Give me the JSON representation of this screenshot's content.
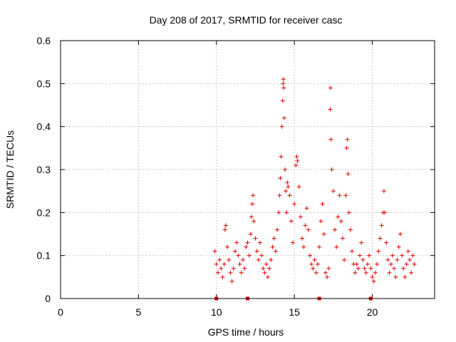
{
  "chart_data": {
    "type": "scatter",
    "title": "Day 208 of 2017, SRMTID for receiver casc",
    "xlabel": "GPS time / hours",
    "ylabel": "SRMTID / TECUs",
    "xlim": [
      0,
      24
    ],
    "ylim": [
      0,
      0.6
    ],
    "x_ticks": [
      0,
      5,
      10,
      15,
      20
    ],
    "y_ticks": [
      0,
      0.1,
      0.2,
      0.3,
      0.4,
      0.5,
      0.6
    ],
    "x_tick_labels": [
      "0",
      "5",
      "10",
      "15",
      "20"
    ],
    "y_tick_labels": [
      "0",
      "0.1",
      "0.2",
      "0.3",
      "0.4",
      "0.5",
      "0.6"
    ],
    "grid": true,
    "marker": "+",
    "color": "#e00000",
    "gap_markers_at_zero": [
      10.0,
      12.0,
      16.6,
      19.9
    ],
    "series": [
      {
        "name": "SRMTID",
        "points": [
          [
            9.9,
            0.11
          ],
          [
            10.0,
            0.08
          ],
          [
            10.1,
            0.06
          ],
          [
            10.2,
            0.09
          ],
          [
            10.3,
            0.07
          ],
          [
            10.4,
            0.05
          ],
          [
            10.5,
            0.08
          ],
          [
            10.55,
            0.16
          ],
          [
            10.6,
            0.17
          ],
          [
            10.7,
            0.12
          ],
          [
            10.8,
            0.09
          ],
          [
            10.9,
            0.06
          ],
          [
            11.0,
            0.04
          ],
          [
            11.1,
            0.07
          ],
          [
            11.2,
            0.11
          ],
          [
            11.3,
            0.13
          ],
          [
            11.4,
            0.1
          ],
          [
            11.5,
            0.08
          ],
          [
            11.6,
            0.06
          ],
          [
            11.7,
            0.09
          ],
          [
            11.8,
            0.07
          ],
          [
            11.9,
            0.12
          ],
          [
            12.0,
            0.13
          ],
          [
            12.1,
            0.1
          ],
          [
            12.2,
            0.15
          ],
          [
            12.25,
            0.19
          ],
          [
            12.3,
            0.22
          ],
          [
            12.35,
            0.24
          ],
          [
            12.4,
            0.18
          ],
          [
            12.5,
            0.14
          ],
          [
            12.6,
            0.11
          ],
          [
            12.7,
            0.09
          ],
          [
            12.8,
            0.13
          ],
          [
            12.9,
            0.1
          ],
          [
            13.0,
            0.07
          ],
          [
            13.1,
            0.06
          ],
          [
            13.2,
            0.08
          ],
          [
            13.3,
            0.05
          ],
          [
            13.4,
            0.07
          ],
          [
            13.5,
            0.09
          ],
          [
            13.6,
            0.12
          ],
          [
            13.7,
            0.14
          ],
          [
            13.8,
            0.11
          ],
          [
            13.9,
            0.16
          ],
          [
            14.0,
            0.2
          ],
          [
            14.05,
            0.24
          ],
          [
            14.1,
            0.28
          ],
          [
            14.15,
            0.33
          ],
          [
            14.2,
            0.4
          ],
          [
            14.25,
            0.46
          ],
          [
            14.28,
            0.5
          ],
          [
            14.3,
            0.51
          ],
          [
            14.32,
            0.49
          ],
          [
            14.35,
            0.42
          ],
          [
            14.4,
            0.3
          ],
          [
            14.45,
            0.25
          ],
          [
            14.5,
            0.2
          ],
          [
            14.55,
            0.27
          ],
          [
            14.6,
            0.26
          ],
          [
            14.7,
            0.24
          ],
          [
            14.8,
            0.18
          ],
          [
            14.9,
            0.13
          ],
          [
            15.0,
            0.22
          ],
          [
            15.1,
            0.31
          ],
          [
            15.15,
            0.33
          ],
          [
            15.2,
            0.32
          ],
          [
            15.3,
            0.26
          ],
          [
            15.4,
            0.19
          ],
          [
            15.5,
            0.14
          ],
          [
            15.6,
            0.12
          ],
          [
            15.7,
            0.17
          ],
          [
            15.8,
            0.21
          ],
          [
            15.9,
            0.16
          ],
          [
            16.0,
            0.1
          ],
          [
            16.1,
            0.08
          ],
          [
            16.2,
            0.07
          ],
          [
            16.3,
            0.09
          ],
          [
            16.4,
            0.06
          ],
          [
            16.5,
            0.08
          ],
          [
            16.6,
            0.12
          ],
          [
            16.7,
            0.18
          ],
          [
            16.8,
            0.22
          ],
          [
            16.9,
            0.15
          ],
          [
            17.0,
            0.06
          ],
          [
            17.1,
            0.05
          ],
          [
            17.2,
            0.07
          ],
          [
            17.3,
            0.44
          ],
          [
            17.32,
            0.49
          ],
          [
            17.35,
            0.37
          ],
          [
            17.4,
            0.3
          ],
          [
            17.5,
            0.25
          ],
          [
            17.6,
            0.16
          ],
          [
            17.7,
            0.12
          ],
          [
            17.8,
            0.19
          ],
          [
            17.9,
            0.24
          ],
          [
            18.0,
            0.18
          ],
          [
            18.1,
            0.14
          ],
          [
            18.2,
            0.09
          ],
          [
            18.3,
            0.24
          ],
          [
            18.35,
            0.35
          ],
          [
            18.4,
            0.37
          ],
          [
            18.45,
            0.29
          ],
          [
            18.5,
            0.2
          ],
          [
            18.6,
            0.16
          ],
          [
            18.7,
            0.11
          ],
          [
            18.8,
            0.08
          ],
          [
            18.9,
            0.06
          ],
          [
            19.0,
            0.08
          ],
          [
            19.1,
            0.07
          ],
          [
            19.2,
            0.1
          ],
          [
            19.3,
            0.13
          ],
          [
            19.4,
            0.09
          ],
          [
            19.5,
            0.07
          ],
          [
            19.6,
            0.06
          ],
          [
            19.7,
            0.08
          ],
          [
            19.8,
            0.1
          ],
          [
            19.9,
            0.07
          ],
          [
            20.0,
            0.05
          ],
          [
            20.1,
            0.04
          ],
          [
            20.2,
            0.06
          ],
          [
            20.3,
            0.08
          ],
          [
            20.4,
            0.11
          ],
          [
            20.5,
            0.14
          ],
          [
            20.6,
            0.17
          ],
          [
            20.7,
            0.2
          ],
          [
            20.75,
            0.25
          ],
          [
            20.8,
            0.2
          ],
          [
            20.9,
            0.13
          ],
          [
            21.0,
            0.09
          ],
          [
            21.1,
            0.06
          ],
          [
            21.2,
            0.08
          ],
          [
            21.3,
            0.1
          ],
          [
            21.4,
            0.07
          ],
          [
            21.5,
            0.05
          ],
          [
            21.6,
            0.09
          ],
          [
            21.7,
            0.12
          ],
          [
            21.8,
            0.15
          ],
          [
            21.9,
            0.1
          ],
          [
            22.0,
            0.07
          ],
          [
            22.1,
            0.05
          ],
          [
            22.2,
            0.08
          ],
          [
            22.3,
            0.11
          ],
          [
            22.4,
            0.09
          ],
          [
            22.5,
            0.06
          ],
          [
            22.6,
            0.1
          ],
          [
            22.7,
            0.08
          ]
        ]
      }
    ]
  }
}
